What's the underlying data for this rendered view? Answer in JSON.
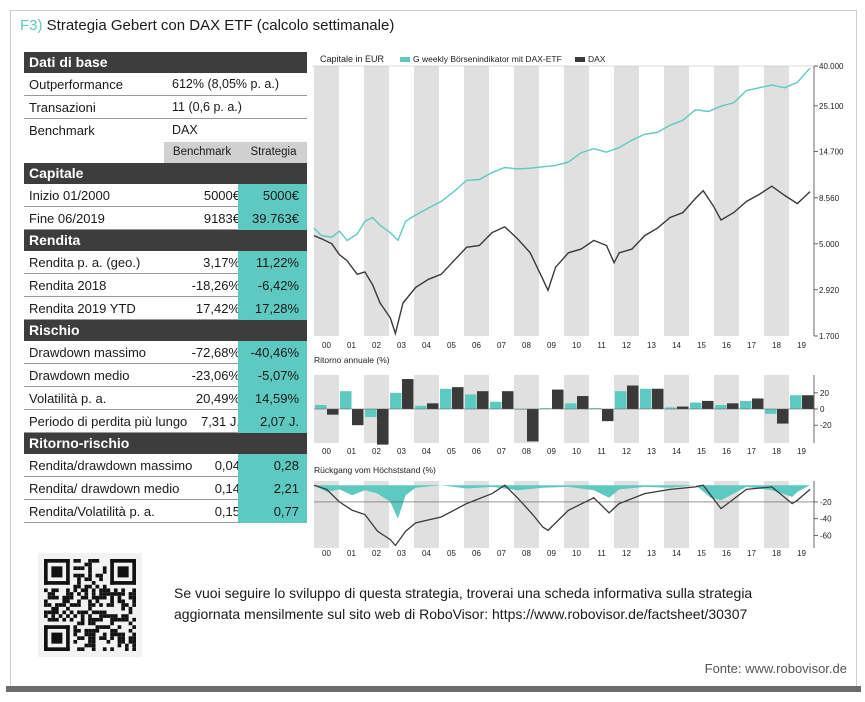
{
  "figure": {
    "number": "F3)",
    "title": "Strategia Gebert con DAX ETF (calcolo settimanale)"
  },
  "table": {
    "base": {
      "title": "Dati di base",
      "outperformance_label": "Outperformance",
      "outperformance_value": "612% (8,05% p. a.)",
      "transactions_label": "Transazioni",
      "transactions_value": "11 (0,6 p. a.)",
      "benchmark_label": "Benchmark",
      "benchmark_value": "DAX",
      "col_benchmark": "Benchmark",
      "col_strategy": "Strategia"
    },
    "sections": [
      {
        "title": "Capitale",
        "rows": [
          {
            "label": "Inizio 01/2000",
            "benchmark": "5000€",
            "strategy": "5000€"
          },
          {
            "label": "Fine 06/2019",
            "benchmark": "9183€",
            "strategy": "39.763€"
          }
        ]
      },
      {
        "title": "Rendita",
        "rows": [
          {
            "label": "Rendita p. a. (geo.)",
            "benchmark": "3,17%",
            "strategy": "11,22%"
          },
          {
            "label": "Rendita 2018",
            "benchmark": "-18,26%",
            "strategy": "-6,42%"
          },
          {
            "label": "Rendita 2019 YTD",
            "benchmark": "17,42%",
            "strategy": "17,28%"
          }
        ]
      },
      {
        "title": "Rischio",
        "rows": [
          {
            "label": "Drawdown massimo",
            "benchmark": "-72,68%",
            "strategy": "-40,46%"
          },
          {
            "label": "Drawdown medio",
            "benchmark": "-23,06%",
            "strategy": "-5,07%"
          },
          {
            "label": "Volatilità p. a.",
            "benchmark": "20,49%",
            "strategy": "14,59%"
          },
          {
            "label": "Periodo di perdita più lungo",
            "benchmark": "7,31 J.",
            "strategy": "2,07 J."
          }
        ]
      },
      {
        "title": "Ritorno-rischio",
        "rows": [
          {
            "label": "Rendita/drawdown massimo",
            "benchmark": "0,04",
            "strategy": "0,28"
          },
          {
            "label": "Rendita/ drawdown medio",
            "benchmark": "0,14",
            "strategy": "2,21"
          },
          {
            "label": "Rendita/Volatilità p. a.",
            "benchmark": "0,15",
            "strategy": "0,77"
          }
        ]
      }
    ]
  },
  "colors": {
    "teal": "#5ec9c0",
    "dark": "#3d3d3d",
    "band": "#e0e0e0"
  },
  "chart_data": [
    {
      "type": "line",
      "title": "Capitale in EUR",
      "yscale": "log",
      "x_ticks": [
        "00",
        "01",
        "02",
        "03",
        "04",
        "05",
        "06",
        "07",
        "08",
        "09",
        "10",
        "11",
        "12",
        "13",
        "14",
        "15",
        "16",
        "17",
        "18",
        "19"
      ],
      "y_ticks": [
        "40.000",
        "25.100",
        "14.700",
        "8.560",
        "5.000",
        "2.920",
        "1.700"
      ],
      "y_tick_values": [
        40000,
        25100,
        14700,
        8560,
        5000,
        2920,
        1700
      ],
      "ylim": [
        1700,
        40000
      ],
      "series": [
        {
          "name": "G weekly Börsenindikator mit DAX-ETF",
          "color": "#5ec9c0",
          "x": [
            2000.0,
            2000.3,
            2000.7,
            2001.0,
            2001.3,
            2001.7,
            2002.0,
            2002.3,
            2002.6,
            2003.0,
            2003.3,
            2003.6,
            2004.0,
            2004.5,
            2005.0,
            2005.5,
            2006.0,
            2006.5,
            2007.0,
            2007.5,
            2008.0,
            2008.5,
            2009.0,
            2009.5,
            2010.0,
            2010.5,
            2011.0,
            2011.5,
            2012.0,
            2012.5,
            2013.0,
            2013.5,
            2014.0,
            2014.5,
            2015.0,
            2015.5,
            2016.0,
            2016.5,
            2017.0,
            2017.5,
            2018.0,
            2018.5,
            2019.0,
            2019.5
          ],
          "y": [
            6000,
            5500,
            5400,
            5800,
            5200,
            5600,
            6500,
            6800,
            6200,
            5700,
            5200,
            6500,
            7000,
            7600,
            8200,
            9200,
            10500,
            10600,
            11500,
            12200,
            12000,
            12100,
            12300,
            12500,
            13000,
            14500,
            15200,
            14600,
            15400,
            16800,
            18000,
            18400,
            20000,
            21200,
            24000,
            23500,
            25000,
            26000,
            30000,
            31000,
            32000,
            31000,
            33000,
            39000
          ]
        },
        {
          "name": "DAX",
          "color": "#3a3a3a",
          "x": [
            2000.0,
            2000.3,
            2000.7,
            2001.0,
            2001.3,
            2001.7,
            2002.0,
            2002.3,
            2002.6,
            2003.0,
            2003.2,
            2003.5,
            2004.0,
            2004.5,
            2005.0,
            2005.5,
            2006.0,
            2006.5,
            2007.0,
            2007.5,
            2008.0,
            2008.5,
            2009.0,
            2009.2,
            2009.5,
            2010.0,
            2010.5,
            2011.0,
            2011.5,
            2011.8,
            2012.0,
            2012.5,
            2013.0,
            2013.5,
            2014.0,
            2014.5,
            2015.0,
            2015.3,
            2015.7,
            2016.0,
            2016.5,
            2017.0,
            2017.5,
            2018.0,
            2018.5,
            2019.0,
            2019.5
          ],
          "y": [
            5500,
            5300,
            5000,
            4400,
            4100,
            3500,
            3600,
            3100,
            2500,
            2100,
            1750,
            2500,
            3000,
            3300,
            3500,
            4100,
            4800,
            4900,
            5700,
            6100,
            5300,
            4500,
            3300,
            2900,
            3800,
            4500,
            4700,
            5200,
            4900,
            4000,
            4500,
            4700,
            5500,
            6000,
            6800,
            7200,
            8500,
            9300,
            7800,
            6600,
            7200,
            8200,
            8900,
            9800,
            8800,
            8000,
            9200
          ]
        }
      ]
    },
    {
      "type": "bar",
      "title": "Ritorno annuale (%)",
      "categories": [
        "00",
        "01",
        "02",
        "03",
        "04",
        "05",
        "06",
        "07",
        "08",
        "09",
        "10",
        "11",
        "12",
        "13",
        "14",
        "15",
        "16",
        "17",
        "18",
        "19"
      ],
      "y_ticks": [
        "20",
        "0",
        "-20"
      ],
      "ylim": [
        -42,
        42
      ],
      "series": [
        {
          "name": "G weekly Börsenindikator mit DAX-ETF",
          "color": "#5ec9c0",
          "values": [
            5,
            22,
            -10,
            20,
            4,
            25,
            18,
            9,
            0,
            1,
            7,
            1,
            22,
            25,
            2,
            8,
            5,
            10,
            -6,
            17
          ]
        },
        {
          "name": "DAX",
          "color": "#3a3a3a",
          "values": [
            -7,
            -20,
            -44,
            37,
            7,
            27,
            22,
            22,
            -40,
            24,
            16,
            -15,
            29,
            25,
            3,
            10,
            7,
            13,
            -18,
            17
          ]
        }
      ]
    },
    {
      "type": "area",
      "title": "Rückgang vom Höchststand (%)",
      "x_ticks": [
        "00",
        "01",
        "02",
        "03",
        "04",
        "05",
        "06",
        "07",
        "08",
        "09",
        "10",
        "11",
        "12",
        "13",
        "14",
        "15",
        "16",
        "17",
        "18",
        "19"
      ],
      "y_ticks": [
        "-20",
        "-40",
        "-60"
      ],
      "ylim": [
        -75,
        5
      ],
      "series": [
        {
          "name": "G weekly Börsenindikator mit DAX-ETF",
          "color": "#5ec9c0",
          "x": [
            2000.0,
            2000.5,
            2001.0,
            2001.5,
            2002.0,
            2002.5,
            2003.0,
            2003.3,
            2003.6,
            2004.0,
            2005.0,
            2006.0,
            2007.0,
            2008.0,
            2009.0,
            2010.0,
            2011.0,
            2011.6,
            2012.0,
            2013.0,
            2014.0,
            2015.0,
            2015.6,
            2016.0,
            2016.5,
            2017.0,
            2018.0,
            2018.8,
            2019.0,
            2019.5
          ],
          "y": [
            0,
            -8,
            -5,
            -12,
            -6,
            -10,
            -20,
            -40,
            -12,
            -3,
            0,
            -4,
            -2,
            -6,
            -3,
            -2,
            -6,
            -15,
            -5,
            -2,
            -3,
            0,
            -15,
            -18,
            -10,
            -2,
            -6,
            -14,
            -8,
            0
          ]
        },
        {
          "name": "DAX",
          "color": "#3a3a3a",
          "x": [
            2000.0,
            2000.5,
            2001.0,
            2001.5,
            2002.0,
            2002.5,
            2003.0,
            2003.2,
            2003.6,
            2004.0,
            2005.0,
            2006.0,
            2007.0,
            2007.5,
            2008.0,
            2008.6,
            2009.0,
            2009.2,
            2010.0,
            2011.0,
            2011.6,
            2012.0,
            2013.0,
            2014.0,
            2015.0,
            2015.3,
            2016.0,
            2017.0,
            2018.0,
            2018.8,
            2019.0,
            2019.5
          ],
          "y": [
            0,
            -5,
            -20,
            -30,
            -35,
            -55,
            -65,
            -72,
            -55,
            -45,
            -38,
            -22,
            -10,
            0,
            -15,
            -35,
            -50,
            -54,
            -30,
            -15,
            -33,
            -22,
            -10,
            -5,
            -2,
            0,
            -28,
            -5,
            -2,
            -22,
            -18,
            -5
          ]
        }
      ]
    }
  ],
  "footer": {
    "text": "Se vuoi seguire lo sviluppo di questa strategia, troverai una scheda informativa sulla strategia aggiornata mensilmente sul sito web di RoboVisor: https://www.robovisor.de/factsheet/30307",
    "source": "Fonte: www.robovisor.de"
  }
}
